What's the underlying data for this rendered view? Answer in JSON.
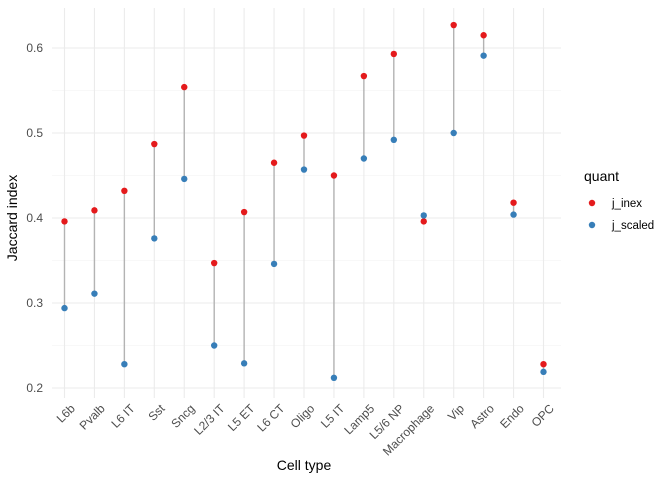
{
  "chart_data": {
    "type": "scatter",
    "subtype": "dumbbell",
    "title": "",
    "xlabel": "Cell type",
    "ylabel": "Jaccard index",
    "ylim": [
      0.2,
      0.63
    ],
    "yticks": [
      "0.2",
      "0.3",
      "0.4",
      "0.5",
      "0.6"
    ],
    "grid": true,
    "legend_position": "right",
    "legend_title": "quant",
    "categories": [
      "L6b",
      "Pvalb",
      "L6 IT",
      "Sst",
      "Sncg",
      "L2/3 IT",
      "L5 ET",
      "L6 CT",
      "Oligo",
      "L5 IT",
      "Lamp5",
      "L5/6 NP",
      "Macrophage",
      "Vip",
      "Astro",
      "Endo",
      "OPC"
    ],
    "series": [
      {
        "name": "j_inex",
        "color": "#e41a1c",
        "values": [
          0.396,
          0.409,
          0.432,
          0.487,
          0.554,
          0.347,
          0.407,
          0.465,
          0.497,
          0.45,
          0.567,
          0.593,
          0.396,
          0.627,
          0.615,
          0.418,
          0.228
        ]
      },
      {
        "name": "j_scaled",
        "color": "#377eb8",
        "values": [
          0.294,
          0.311,
          0.228,
          0.376,
          0.446,
          0.25,
          0.229,
          0.346,
          0.457,
          0.212,
          0.47,
          0.492,
          0.403,
          0.5,
          0.591,
          0.404,
          0.219
        ]
      }
    ],
    "segment_color": "#b3b3b3"
  }
}
